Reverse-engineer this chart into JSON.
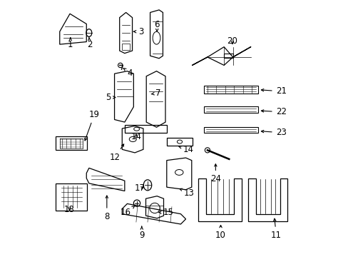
{
  "background_color": "#ffffff",
  "line_color": "#000000",
  "font_size_numbers": 8.5
}
